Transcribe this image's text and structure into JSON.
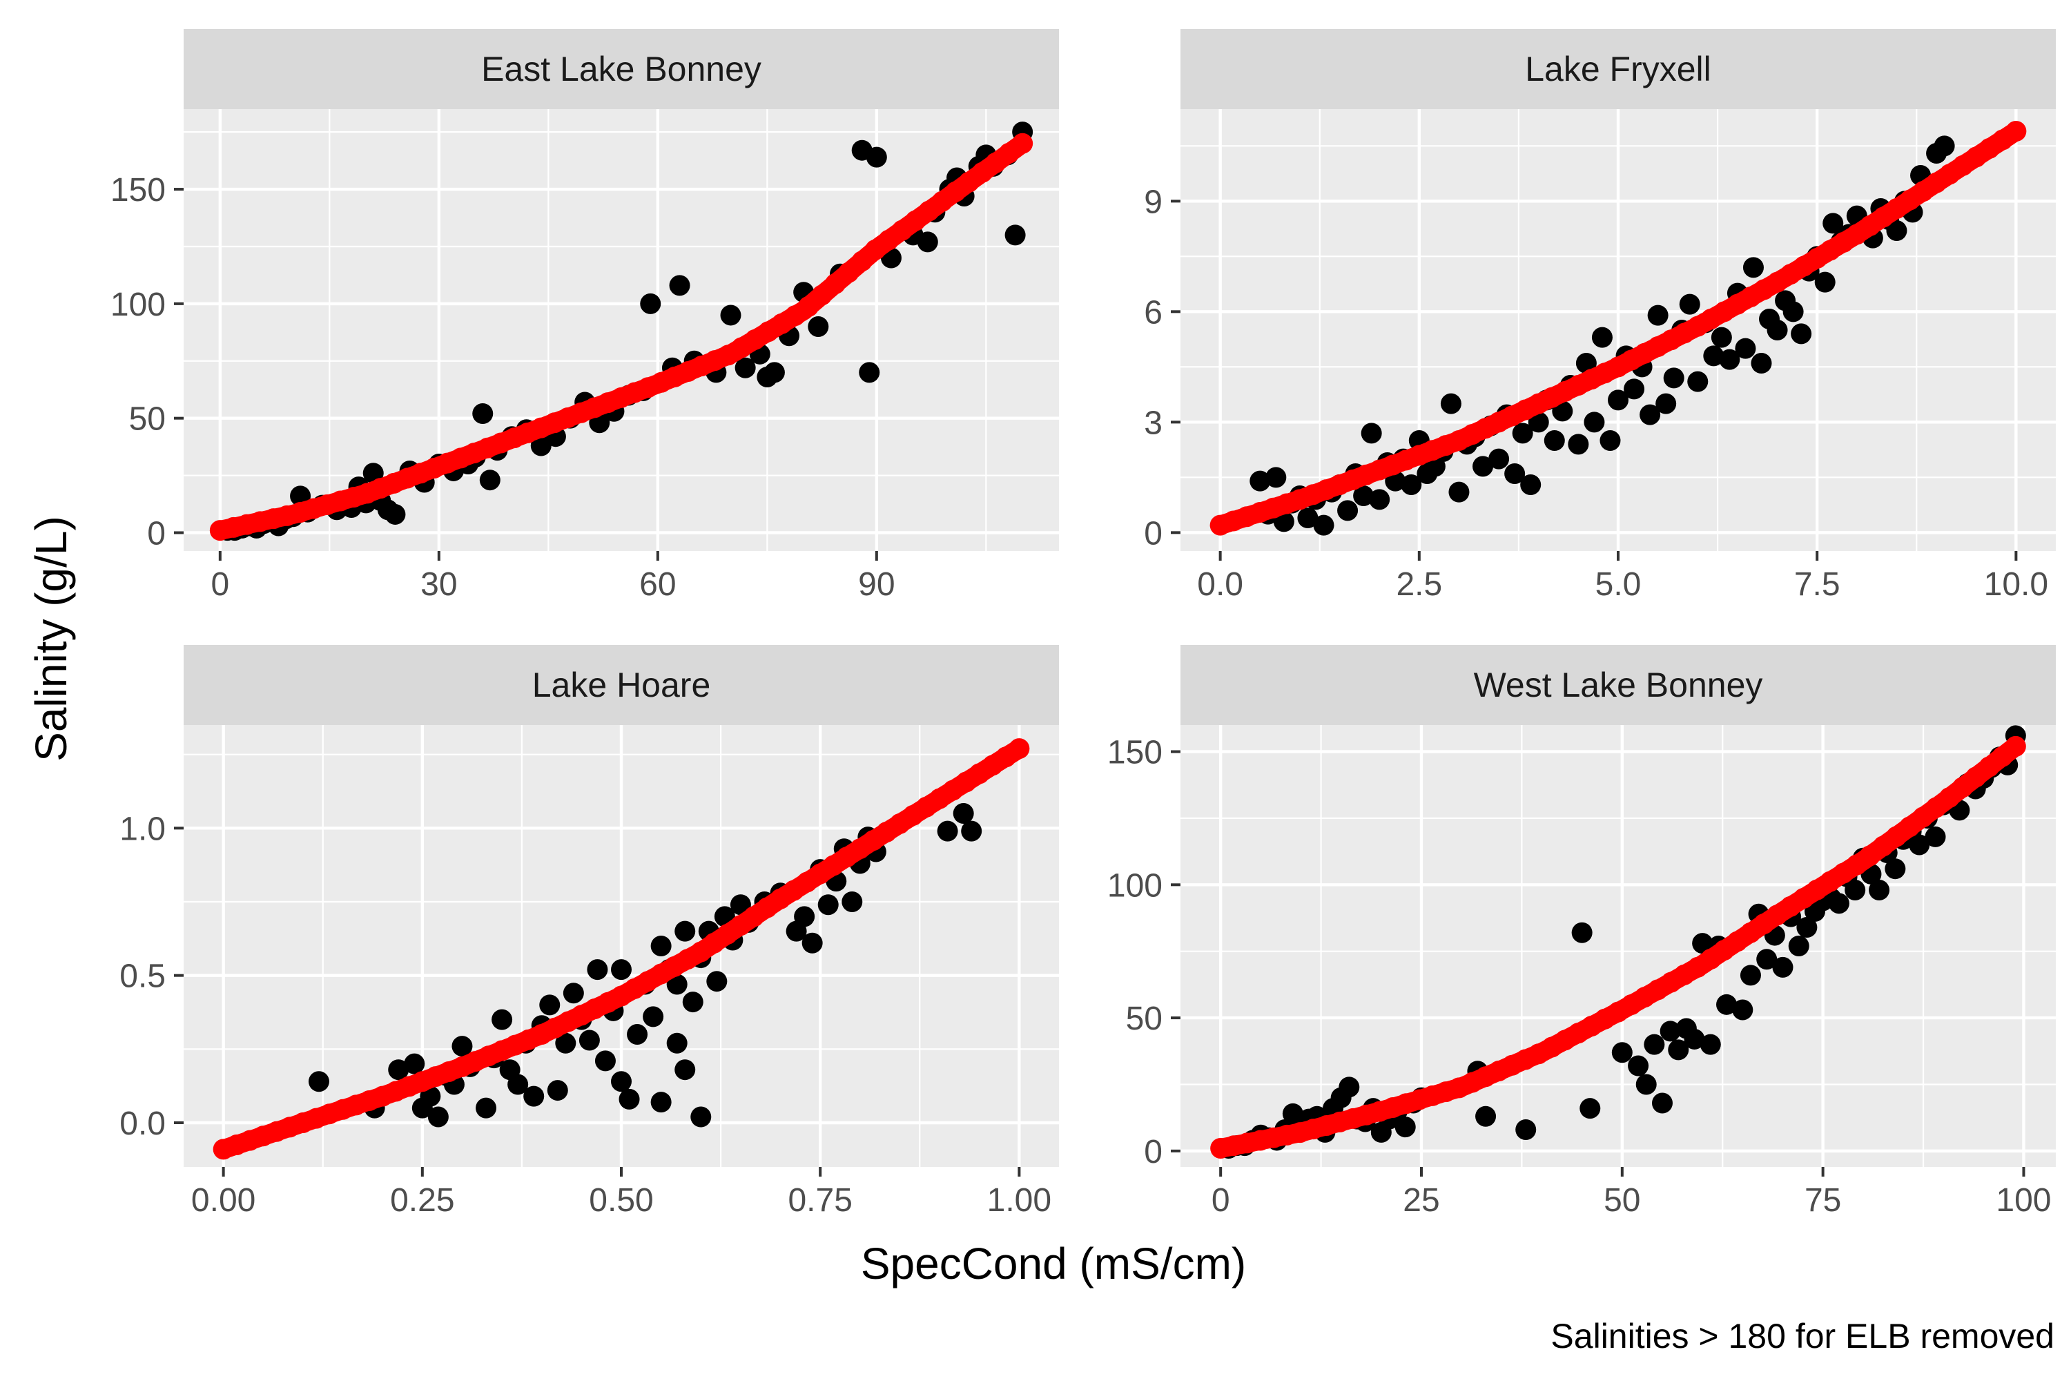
{
  "figure": {
    "xlabel": "SpecCond (mS/cm)",
    "ylabel": "Salinity (g/L)",
    "caption": "Salinities > 180 for ELB removed"
  },
  "colors": {
    "panel_bg": "#ebebeb",
    "strip_bg": "#d9d9d9",
    "grid": "#ffffff",
    "points": "#000000",
    "fit": "#ff0000",
    "tick_text": "#4d4d4d",
    "title_text": "#1a1a1a"
  },
  "chart_data": [
    {
      "type": "scatter",
      "title": "East Lake Bonney",
      "xlim": [
        -5,
        115
      ],
      "ylim": [
        -8,
        185
      ],
      "xticks": [
        0,
        30,
        60,
        90
      ],
      "xtick_labels": [
        "0",
        "30",
        "60",
        "90"
      ],
      "yticks": [
        0,
        50,
        100,
        150
      ],
      "ytick_labels": [
        "0",
        "50",
        "100",
        "150"
      ],
      "observations": {
        "x": [
          1,
          2,
          3,
          4,
          5,
          6,
          7,
          8,
          9,
          10,
          11,
          12,
          14,
          16,
          18,
          19,
          20,
          21,
          22,
          23,
          24,
          26,
          28,
          30,
          32,
          34,
          35,
          36,
          37,
          38,
          40,
          42,
          44,
          46,
          48,
          50,
          52,
          54,
          56,
          58,
          59,
          62,
          63,
          65,
          68,
          70,
          72,
          74,
          75,
          76,
          78,
          80,
          82,
          85,
          88,
          89,
          90,
          92,
          95,
          97,
          98,
          100,
          101,
          102,
          104,
          105,
          106,
          108,
          109,
          110
        ],
        "y": [
          1,
          1,
          2,
          3,
          2,
          4,
          5,
          3,
          6,
          7,
          16,
          9,
          12,
          10,
          11,
          20,
          13,
          26,
          14,
          10,
          8,
          27,
          22,
          30,
          27,
          30,
          33,
          52,
          23,
          36,
          42,
          45,
          38,
          42,
          50,
          57,
          48,
          53,
          60,
          62,
          100,
          72,
          108,
          75,
          70,
          95,
          72,
          78,
          68,
          70,
          86,
          105,
          90,
          113,
          167,
          70,
          164,
          120,
          130,
          127,
          140,
          150,
          155,
          147,
          160,
          165,
          160,
          165,
          130,
          175
        ]
      },
      "fit": {
        "x": [
          0,
          10,
          20,
          30,
          40,
          50,
          60,
          70,
          80,
          90,
          100,
          110
        ],
        "y": [
          1,
          8,
          17,
          29,
          41,
          53,
          65,
          78,
          97,
          124,
          147,
          170
        ]
      }
    },
    {
      "type": "scatter",
      "title": "Lake Fryxell",
      "xlim": [
        -0.5,
        10.5
      ],
      "ylim": [
        -0.5,
        11.5
      ],
      "xticks": [
        0,
        2.5,
        5,
        7.5,
        10
      ],
      "xtick_labels": [
        "0.0",
        "2.5",
        "5.0",
        "7.5",
        "10.0"
      ],
      "yticks": [
        0,
        3,
        6,
        9
      ],
      "ytick_labels": [
        "0",
        "3",
        "6",
        "9"
      ],
      "observations": {
        "x": [
          0.5,
          0.6,
          0.7,
          0.8,
          0.9,
          1.0,
          1.1,
          1.2,
          1.3,
          1.4,
          1.5,
          1.6,
          1.7,
          1.8,
          1.9,
          2.0,
          2.1,
          2.2,
          2.3,
          2.4,
          2.5,
          2.6,
          2.7,
          2.8,
          2.9,
          3.0,
          3.1,
          3.2,
          3.3,
          3.4,
          3.5,
          3.6,
          3.7,
          3.8,
          3.9,
          4.0,
          4.1,
          4.2,
          4.3,
          4.4,
          4.5,
          4.6,
          4.7,
          4.8,
          4.9,
          5.0,
          5.1,
          5.2,
          5.3,
          5.4,
          5.5,
          5.6,
          5.7,
          5.8,
          5.9,
          6.0,
          6.1,
          6.2,
          6.3,
          6.4,
          6.5,
          6.6,
          6.7,
          6.8,
          6.9,
          7.0,
          7.1,
          7.2,
          7.3,
          7.4,
          7.5,
          7.6,
          7.7,
          7.8,
          7.9,
          8.0,
          8.1,
          8.2,
          8.3,
          8.4,
          8.5,
          8.6,
          8.7,
          8.8,
          9.0,
          9.1
        ],
        "y": [
          1.4,
          0.5,
          1.5,
          0.3,
          0.8,
          1.0,
          0.4,
          0.9,
          0.2,
          1.1,
          1.3,
          0.6,
          1.6,
          1.0,
          2.7,
          0.9,
          1.9,
          1.4,
          2.0,
          1.3,
          2.5,
          1.6,
          1.8,
          2.2,
          3.5,
          1.1,
          2.4,
          2.6,
          1.8,
          2.9,
          2.0,
          3.2,
          1.6,
          2.7,
          1.3,
          3.0,
          3.6,
          2.5,
          3.3,
          4.0,
          2.4,
          4.6,
          3.0,
          5.3,
          2.5,
          3.6,
          4.8,
          3.9,
          4.5,
          3.2,
          5.9,
          3.5,
          4.2,
          5.5,
          6.2,
          4.1,
          5.7,
          4.8,
          5.3,
          4.7,
          6.5,
          5.0,
          7.2,
          4.6,
          5.8,
          5.5,
          6.3,
          6.0,
          5.4,
          7.1,
          7.5,
          6.8,
          8.4,
          7.9,
          8.1,
          8.6,
          8.3,
          8.0,
          8.8,
          8.5,
          8.2,
          9.0,
          8.7,
          9.7,
          10.3,
          10.5
        ]
      },
      "fit": {
        "x": [
          0,
          1,
          2,
          3,
          4,
          5,
          6,
          7,
          8,
          9,
          10
        ],
        "y": [
          0.2,
          0.9,
          1.7,
          2.5,
          3.5,
          4.5,
          5.6,
          6.8,
          8.1,
          9.5,
          10.9
        ]
      }
    },
    {
      "type": "scatter",
      "title": "Lake Hoare",
      "xlim": [
        -0.05,
        1.05
      ],
      "ylim": [
        -0.15,
        1.35
      ],
      "xticks": [
        0,
        0.25,
        0.5,
        0.75,
        1
      ],
      "xtick_labels": [
        "0.00",
        "0.25",
        "0.50",
        "0.75",
        "1.00"
      ],
      "yticks": [
        0,
        0.5,
        1
      ],
      "ytick_labels": [
        "0.0",
        "0.5",
        "1.0"
      ],
      "observations": {
        "x": [
          0.12,
          0.19,
          0.22,
          0.24,
          0.25,
          0.26,
          0.27,
          0.28,
          0.29,
          0.3,
          0.31,
          0.33,
          0.34,
          0.35,
          0.36,
          0.37,
          0.38,
          0.39,
          0.4,
          0.41,
          0.42,
          0.43,
          0.44,
          0.45,
          0.46,
          0.47,
          0.48,
          0.49,
          0.5,
          0.5,
          0.51,
          0.52,
          0.53,
          0.54,
          0.55,
          0.55,
          0.56,
          0.57,
          0.57,
          0.58,
          0.58,
          0.59,
          0.6,
          0.6,
          0.61,
          0.62,
          0.63,
          0.64,
          0.65,
          0.66,
          0.68,
          0.7,
          0.72,
          0.73,
          0.74,
          0.75,
          0.76,
          0.77,
          0.78,
          0.79,
          0.8,
          0.81,
          0.82,
          0.91,
          0.93,
          0.94
        ],
        "y": [
          0.14,
          0.05,
          0.18,
          0.2,
          0.05,
          0.09,
          0.02,
          0.16,
          0.13,
          0.26,
          0.19,
          0.05,
          0.22,
          0.35,
          0.18,
          0.13,
          0.27,
          0.09,
          0.33,
          0.4,
          0.11,
          0.27,
          0.44,
          0.35,
          0.28,
          0.52,
          0.21,
          0.38,
          0.52,
          0.14,
          0.08,
          0.3,
          0.47,
          0.36,
          0.6,
          0.07,
          0.52,
          0.27,
          0.47,
          0.18,
          0.65,
          0.41,
          0.02,
          0.56,
          0.65,
          0.48,
          0.7,
          0.62,
          0.74,
          0.68,
          0.75,
          0.78,
          0.65,
          0.7,
          0.61,
          0.86,
          0.74,
          0.82,
          0.93,
          0.75,
          0.88,
          0.97,
          0.92,
          0.99,
          1.05,
          0.99
        ]
      },
      "fit": {
        "x": [
          0,
          0.1,
          0.2,
          0.3,
          0.4,
          0.5,
          0.6,
          0.7,
          0.8,
          0.9,
          1.0
        ],
        "y": [
          -0.09,
          0.0,
          0.09,
          0.19,
          0.3,
          0.43,
          0.58,
          0.76,
          0.93,
          1.1,
          1.27
        ]
      }
    },
    {
      "type": "scatter",
      "title": "West Lake Bonney",
      "xlim": [
        -5,
        104
      ],
      "ylim": [
        -6,
        160
      ],
      "xticks": [
        0,
        25,
        50,
        75,
        100
      ],
      "xtick_labels": [
        "0",
        "25",
        "50",
        "75",
        "100"
      ],
      "yticks": [
        0,
        50,
        100,
        150
      ],
      "ytick_labels": [
        "0",
        "50",
        "100",
        "150"
      ],
      "observations": {
        "x": [
          1,
          2,
          3,
          4,
          5,
          6,
          7,
          8,
          9,
          10,
          11,
          12,
          13,
          14,
          15,
          16,
          17,
          18,
          19,
          20,
          21,
          22,
          23,
          24,
          25,
          32,
          33,
          38,
          45,
          46,
          50,
          52,
          53,
          54,
          55,
          56,
          57,
          58,
          59,
          60,
          61,
          62,
          63,
          65,
          66,
          67,
          68,
          69,
          70,
          71,
          72,
          73,
          74,
          75,
          76,
          77,
          78,
          79,
          80,
          81,
          82,
          83,
          84,
          85,
          86,
          87,
          88,
          89,
          90,
          91,
          92,
          93,
          94,
          95,
          96,
          97,
          98,
          99
        ],
        "y": [
          1,
          2,
          2,
          4,
          6,
          5,
          4,
          8,
          14,
          10,
          12,
          13,
          7,
          16,
          20,
          24,
          12,
          11,
          16,
          7,
          12,
          15,
          9,
          18,
          20,
          30,
          13,
          8,
          82,
          16,
          37,
          32,
          25,
          40,
          18,
          45,
          38,
          46,
          42,
          78,
          40,
          77,
          55,
          53,
          66,
          89,
          72,
          81,
          69,
          88,
          77,
          84,
          90,
          94,
          95,
          93,
          103,
          98,
          110,
          104,
          98,
          112,
          106,
          117,
          120,
          115,
          125,
          118,
          130,
          132,
          128,
          138,
          136,
          140,
          144,
          148,
          145,
          156
        ]
      },
      "fit": {
        "x": [
          0,
          10,
          20,
          30,
          40,
          50,
          60,
          70,
          80,
          90,
          99
        ],
        "y": [
          1,
          7,
          15,
          24,
          37,
          53,
          70,
          90,
          109,
          131,
          152
        ]
      }
    }
  ]
}
